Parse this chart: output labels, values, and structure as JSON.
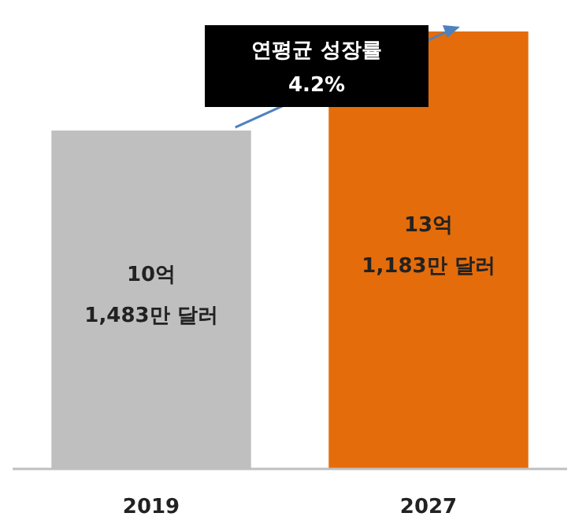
{
  "chart_data": {
    "type": "bar",
    "categories": [
      "2019",
      "2027"
    ],
    "values": [
      10.1483,
      13.1183
    ],
    "colors": [
      "#bfbfbf",
      "#e46c0a"
    ],
    "value_labels": [
      "10억\n1,483만 달러",
      "13억\n1,183만 달러"
    ],
    "annotations": [
      "연평균 성장률\n4.2%"
    ]
  }
}
